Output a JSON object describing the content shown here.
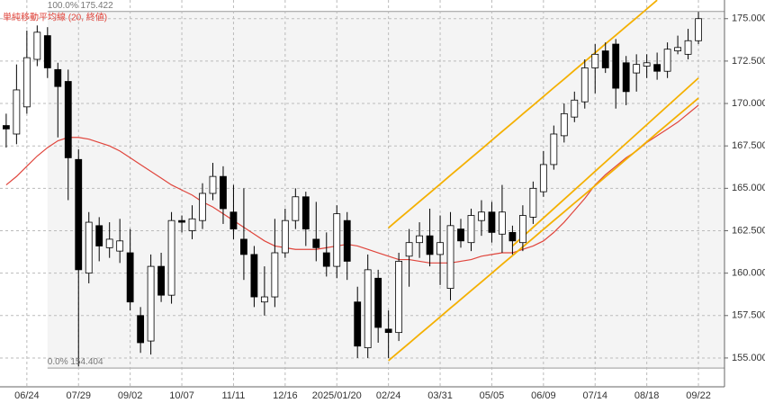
{
  "chart_data": {
    "type": "candlestick",
    "legend": "単純移動平均線 (20, 終値)",
    "categories": [
      null,
      null,
      "06/24",
      null,
      null,
      null,
      null,
      "07/29",
      null,
      null,
      null,
      null,
      "09/02",
      null,
      null,
      null,
      null,
      "10/07",
      null,
      null,
      null,
      null,
      "11/11",
      null,
      null,
      null,
      null,
      "12/16",
      null,
      null,
      null,
      null,
      "2025/01/20",
      null,
      null,
      null,
      null,
      "02/24",
      null,
      null,
      null,
      null,
      "03/31",
      null,
      null,
      null,
      null,
      "05/05",
      null,
      null,
      null,
      null,
      "06/09",
      null,
      null,
      null,
      null,
      "07/14",
      null,
      null,
      null,
      null,
      "08/18",
      null,
      null,
      null,
      null,
      "09/22"
    ],
    "open": [
      168.7,
      168.2,
      169.8,
      172.6,
      174.0,
      172.0,
      171.3,
      166.7,
      160.0,
      162.8,
      161.5,
      161.3,
      161.2,
      157.5,
      156.0,
      160.4,
      158.7,
      163.1,
      162.5,
      163.1,
      164.7,
      165.7,
      163.6,
      162.0,
      161.1,
      158.3,
      158.6,
      161.2,
      163.1,
      164.5,
      162.0,
      161.2,
      160.4,
      163.1,
      158.3,
      155.6,
      159.7,
      156.7,
      156.5,
      161.0,
      161.8,
      162.2,
      161.1,
      159.1,
      162.6,
      161.8,
      163.1,
      163.6,
      162.3,
      162.4,
      161.8,
      163.3,
      164.8,
      166.4,
      168.1,
      169.2,
      170.1,
      172.1,
      173.1,
      173.5,
      172.4,
      171.8,
      172.2,
      172.3,
      171.9,
      173.1,
      172.9,
      173.7
    ],
    "high": [
      169.4,
      172.3,
      174.3,
      174.6,
      174.5,
      172.4,
      172.0,
      167.3,
      163.6,
      163.3,
      163.0,
      163.2,
      162.6,
      158.0,
      161.1,
      161.2,
      163.6,
      163.4,
      164.0,
      165.3,
      166.5,
      166.3,
      165.2,
      165.0,
      161.6,
      160.4,
      163.2,
      163.8,
      165.0,
      164.8,
      164.2,
      162.4,
      164.0,
      163.6,
      159.2,
      161.1,
      160.2,
      157.8,
      161.2,
      162.6,
      163.0,
      163.8,
      163.4,
      163.6,
      163.2,
      163.8,
      164.3,
      164.2,
      165.2,
      162.8,
      164.0,
      165.4,
      167.2,
      168.7,
      170.0,
      170.7,
      172.6,
      173.5,
      173.6,
      173.8,
      172.8,
      172.9,
      172.9,
      173.0,
      173.6,
      174.0,
      174.4,
      175.4
    ],
    "low": [
      167.4,
      167.6,
      169.4,
      172.2,
      171.5,
      168.0,
      164.3,
      154.5,
      159.4,
      160.7,
      160.9,
      160.6,
      157.8,
      155.3,
      155.2,
      158.3,
      158.2,
      162.4,
      162.0,
      162.6,
      164.3,
      162.9,
      162.0,
      159.6,
      158.0,
      157.5,
      158.0,
      160.9,
      162.6,
      161.6,
      160.7,
      159.8,
      159.7,
      159.6,
      155.0,
      155.0,
      155.9,
      155.0,
      156.0,
      159.2,
      160.9,
      160.4,
      159.3,
      158.4,
      161.5,
      161.3,
      162.2,
      161.8,
      161.2,
      161.1,
      161.3,
      162.9,
      164.5,
      166.1,
      167.7,
      168.9,
      169.7,
      170.6,
      171.8,
      169.7,
      169.9,
      170.7,
      171.5,
      171.4,
      171.5,
      172.9,
      172.6,
      173.5
    ],
    "close": [
      168.5,
      170.8,
      172.7,
      174.2,
      172.1,
      171.0,
      166.8,
      160.2,
      163.0,
      161.6,
      162.0,
      161.9,
      158.3,
      155.9,
      160.4,
      158.7,
      163.1,
      163.0,
      163.2,
      164.7,
      165.7,
      163.8,
      162.6,
      161.1,
      158.6,
      158.6,
      161.2,
      163.1,
      164.5,
      162.6,
      161.5,
      160.4,
      163.5,
      160.7,
      155.7,
      160.2,
      156.8,
      156.5,
      160.7,
      161.8,
      162.2,
      161.1,
      161.8,
      162.8,
      161.9,
      163.4,
      163.6,
      162.4,
      163.6,
      161.9,
      163.4,
      165.0,
      166.4,
      168.2,
      169.4,
      170.2,
      172.1,
      172.9,
      172.1,
      170.9,
      170.7,
      172.3,
      172.4,
      171.9,
      173.2,
      173.3,
      173.7,
      175.0
    ],
    "up_color": "#ffffff",
    "down_color": "#000000",
    "moving_average": {
      "color": "#e0453c",
      "values": [
        165.2,
        165.7,
        166.3,
        166.9,
        167.4,
        167.8,
        168.0,
        168.0,
        167.9,
        167.7,
        167.5,
        167.2,
        166.8,
        166.4,
        166.0,
        165.6,
        165.2,
        164.9,
        164.6,
        164.2,
        163.9,
        163.5,
        163.1,
        162.7,
        162.3,
        161.9,
        161.6,
        161.5,
        161.4,
        161.4,
        161.4,
        161.5,
        161.6,
        161.7,
        161.6,
        161.4,
        161.2,
        161.0,
        160.8,
        160.8,
        160.7,
        160.6,
        160.6,
        160.6,
        160.7,
        160.8,
        161.0,
        161.1,
        161.2,
        161.2,
        161.4,
        161.6,
        161.9,
        162.4,
        163.0,
        163.7,
        164.4,
        165.2,
        165.8,
        166.3,
        166.8,
        167.2,
        167.7,
        168.1,
        168.5,
        168.9,
        169.4,
        169.9
      ]
    },
    "trend_lines": [
      {
        "color": "#f4b000",
        "values": [
          null,
          null,
          null,
          null,
          null,
          null,
          null,
          null,
          null,
          null,
          null,
          null,
          null,
          null,
          null,
          null,
          null,
          null,
          null,
          null,
          null,
          null,
          null,
          null,
          null,
          null,
          null,
          null,
          null,
          null,
          null,
          null,
          null,
          null,
          null,
          null,
          null,
          162.67,
          163.19,
          163.7,
          164.22,
          164.73,
          165.25,
          165.77,
          166.28,
          166.8,
          167.31,
          167.83,
          168.35,
          168.86,
          169.38,
          169.89,
          170.41,
          170.93,
          171.44,
          171.96,
          172.47,
          172.99,
          173.51,
          174.02,
          174.54,
          175.05,
          175.57,
          176.09,
          null,
          null,
          null,
          null
        ]
      },
      {
        "color": "#f4b000",
        "values": [
          null,
          null,
          null,
          null,
          null,
          null,
          null,
          null,
          null,
          null,
          null,
          null,
          null,
          null,
          null,
          null,
          null,
          null,
          null,
          null,
          null,
          null,
          null,
          null,
          null,
          null,
          null,
          null,
          null,
          null,
          null,
          null,
          null,
          null,
          null,
          null,
          null,
          null,
          null,
          null,
          null,
          null,
          null,
          null,
          null,
          null,
          null,
          null,
          null,
          161.6,
          162.15,
          162.7,
          163.25,
          163.8,
          164.35,
          164.9,
          165.45,
          166.0,
          166.55,
          167.1,
          167.65,
          168.2,
          168.75,
          169.3,
          169.85,
          170.4,
          170.95,
          171.5
        ]
      },
      {
        "color": "#f4b000",
        "values": [
          null,
          null,
          null,
          null,
          null,
          null,
          null,
          null,
          null,
          null,
          null,
          null,
          null,
          null,
          null,
          null,
          null,
          null,
          null,
          null,
          null,
          null,
          null,
          null,
          null,
          null,
          null,
          null,
          null,
          null,
          null,
          null,
          null,
          null,
          null,
          null,
          null,
          154.84,
          155.36,
          155.87,
          156.39,
          156.9,
          157.42,
          157.94,
          158.45,
          158.97,
          159.48,
          160.0,
          160.52,
          161.03,
          161.55,
          162.06,
          162.58,
          163.1,
          163.61,
          164.13,
          164.64,
          165.16,
          165.68,
          166.19,
          166.71,
          167.22,
          167.74,
          168.26,
          168.77,
          169.29,
          169.8,
          170.32
        ]
      }
    ],
    "fib_levels": [
      {
        "label": "100.0%",
        "value": 175.422
      },
      {
        "label": "0.0%",
        "value": 154.404
      }
    ],
    "ylim": [
      153.3,
      176.1
    ],
    "yticks": [
      {
        "value": 155,
        "label": "155.000"
      },
      {
        "value": 157.5,
        "label": "157.500"
      },
      {
        "value": 160,
        "label": "160.000"
      },
      {
        "value": 162.5,
        "label": "162.500"
      },
      {
        "value": 165,
        "label": "165.000"
      },
      {
        "value": 167.5,
        "label": "167.500"
      },
      {
        "value": 170,
        "label": "170.000"
      },
      {
        "value": 172.5,
        "label": "172.500"
      },
      {
        "value": 175,
        "label": "175.000"
      }
    ],
    "grid": true
  }
}
